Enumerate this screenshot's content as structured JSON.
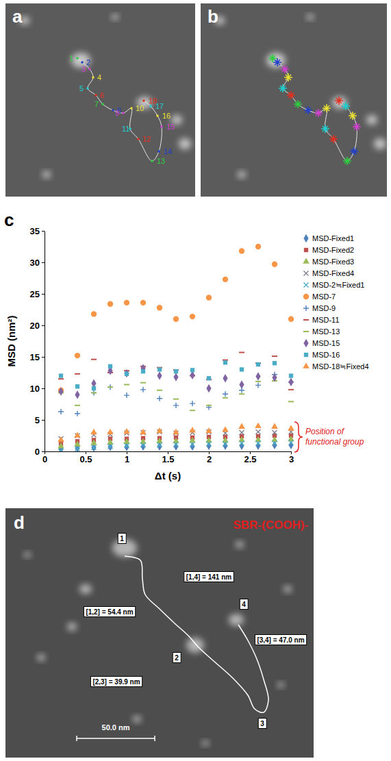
{
  "panel_labels": [
    "a",
    "b",
    "c",
    "d"
  ],
  "image_a": {
    "track_labels": [
      "1",
      "2",
      "3",
      "4",
      "5",
      "6",
      "7",
      "8",
      "9",
      "10",
      "11",
      "12",
      "13",
      "14",
      "15",
      "16",
      "17",
      "18"
    ]
  },
  "chart_data": {
    "type": "scatter",
    "x_label": "Δt (s)",
    "y_label": "MSD (nm²)",
    "x": [
      0.2,
      0.4,
      0.6,
      0.8,
      1,
      1.2,
      1.4,
      1.6,
      1.8,
      2,
      2.2,
      2.4,
      2.6,
      2.8,
      3
    ],
    "xlim": [
      0,
      3
    ],
    "xticks": [
      0,
      0.5,
      1,
      1.5,
      2,
      2.5,
      3
    ],
    "ylim": [
      0,
      35
    ],
    "yticks": [
      0,
      5,
      10,
      15,
      20,
      25,
      30,
      35
    ],
    "grid": false,
    "legend": "right",
    "annotations": [
      {
        "text": "Position of functional group"
      }
    ],
    "series": [
      {
        "name": "MSD-Fixed1",
        "color": "#4f81bd",
        "marker": "diamond",
        "values": [
          0.3,
          0.5,
          0.6,
          0.7,
          0.7,
          0.8,
          0.8,
          0.8,
          0.8,
          0.9,
          0.9,
          0.9,
          0.9,
          1.0,
          1.0
        ]
      },
      {
        "name": "MSD-Fixed2",
        "color": "#c0504d",
        "marker": "square",
        "values": [
          1.2,
          1.6,
          1.8,
          2.0,
          2.0,
          2.1,
          2.1,
          2.2,
          2.2,
          2.3,
          2.3,
          2.4,
          2.4,
          2.5,
          2.5
        ]
      },
      {
        "name": "MSD-Fixed3",
        "color": "#9bbb59",
        "marker": "triangle",
        "values": [
          0.8,
          1.1,
          1.3,
          1.4,
          1.5,
          1.5,
          1.6,
          1.6,
          1.7,
          1.7,
          1.7,
          1.8,
          1.8,
          1.8,
          1.9
        ]
      },
      {
        "name": "MSD-Fixed4",
        "color": "#7f7f8f",
        "marker": "x",
        "values": [
          2.0,
          2.5,
          2.6,
          2.7,
          2.9,
          3.0,
          3.1,
          2.9,
          3.0,
          3.1,
          2.9,
          3.0,
          3.1,
          3.0,
          3.1
        ]
      },
      {
        "name": "MSD-2≒Fixed1",
        "color": "#4bacc6",
        "marker": "x",
        "values": [
          0.1,
          0.4,
          0.6,
          0.8,
          0.9,
          1.0,
          1.0,
          1.1,
          1.1,
          1.2,
          1.2,
          1.3,
          1.3,
          1.3,
          1.4
        ]
      },
      {
        "name": "MSD-7",
        "color": "#f79646",
        "marker": "circle",
        "values": [
          9.7,
          15.2,
          21.8,
          23.4,
          23.6,
          23.6,
          22.8,
          21.0,
          21.4,
          24.4,
          27.3,
          31.8,
          32.5,
          29.7,
          21.0
        ]
      },
      {
        "name": "MSD-9",
        "color": "#4f81bd",
        "marker": "plus",
        "values": [
          6.3,
          6.0,
          9.3,
          10.2,
          8.9,
          9.8,
          8.4,
          7.3,
          7.6,
          7.0,
          9.1,
          9.7,
          10.5,
          12.2,
          11.0
        ]
      },
      {
        "name": "MSD-11",
        "color": "#c0504d",
        "marker": "dash",
        "values": [
          11.5,
          12.3,
          14.6,
          12.5,
          12.8,
          13.5,
          13.3,
          12.9,
          12.0,
          11.4,
          14.5,
          15.7,
          14.0,
          15.1,
          9.8
        ]
      },
      {
        "name": "MSD-13",
        "color": "#9bbb59",
        "marker": "dash",
        "values": [
          9.3,
          7.3,
          9.3,
          10.2,
          10.6,
          10.9,
          9.7,
          8.3,
          6.5,
          7.3,
          8.5,
          9.1,
          11.1,
          11.2,
          7.9
        ]
      },
      {
        "name": "MSD-15",
        "color": "#8064a2",
        "marker": "diamond",
        "values": [
          9.5,
          9.0,
          10.8,
          12.8,
          12.4,
          13.2,
          12.0,
          11.8,
          12.1,
          10.0,
          11.6,
          10.6,
          11.9,
          11.7,
          11.0
        ]
      },
      {
        "name": "MSD-16",
        "color": "#4bacc6",
        "marker": "square",
        "values": [
          12.0,
          10.3,
          10.0,
          13.5,
          12.3,
          12.7,
          13.0,
          12.7,
          12.9,
          11.6,
          14.1,
          13.0,
          13.8,
          14.0,
          12.0
        ]
      },
      {
        "name": "MSD-18≒Fixed4",
        "color": "#f79646",
        "marker": "triangle",
        "values": [
          1.8,
          2.5,
          3.0,
          3.0,
          3.1,
          3.0,
          3.2,
          3.0,
          3.3,
          3.2,
          3.4,
          3.9,
          4.0,
          3.9,
          3.6
        ]
      }
    ]
  },
  "image_d": {
    "title": "SBR-(COOH)-",
    "point_labels": [
      "1",
      "2",
      "3",
      "4"
    ],
    "distance_labels": [
      "[1,4] = 141 nm",
      "[1,2] = 54.4 nm",
      "[2,3] = 39.9 nm",
      "[3,4] = 47.0 nm"
    ],
    "scale_bar": "50.0 nm"
  }
}
